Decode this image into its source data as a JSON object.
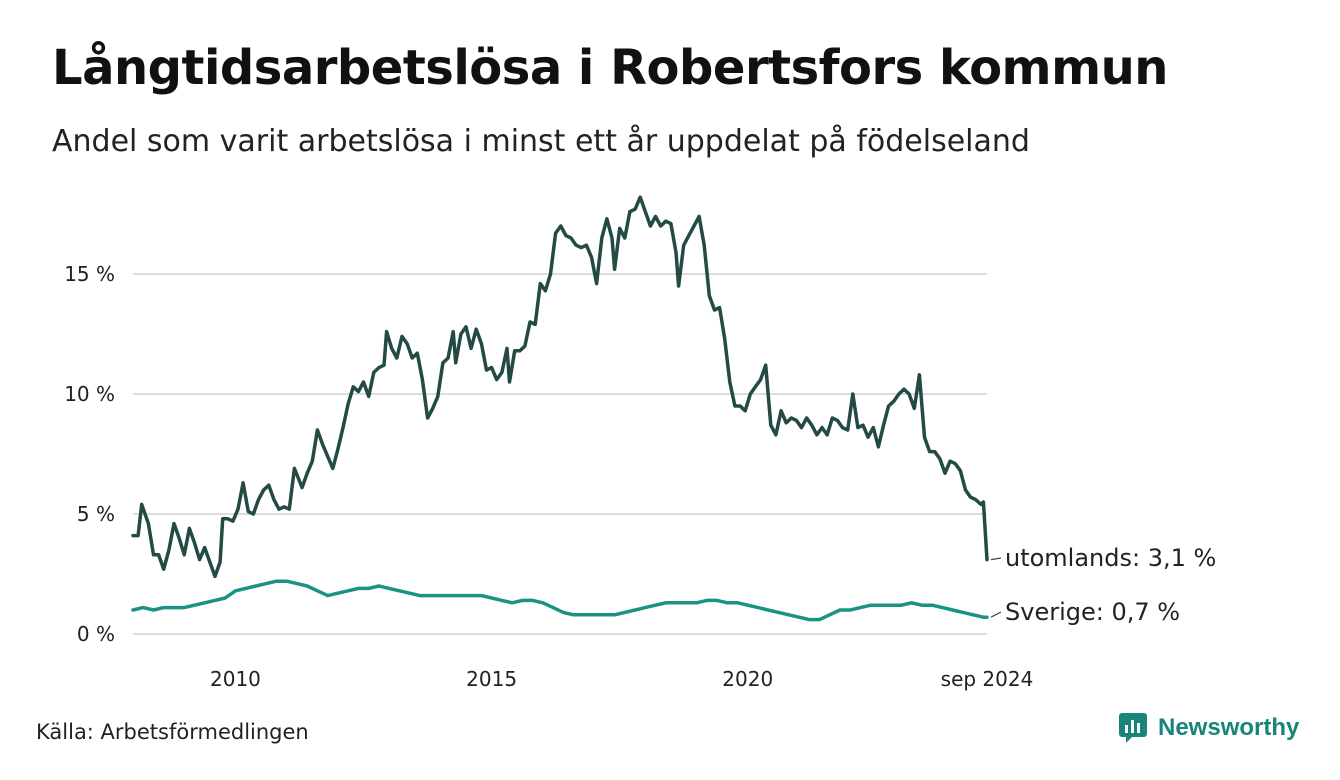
{
  "title": "Långtidsarbetslösa i Robertsfors kommun",
  "subtitle": "Andel som varit arbetslösa i minst ett år uppdelat på födelseland",
  "source": "Källa: Arbetsförmedlingen",
  "brand": {
    "name": "Newsworthy",
    "icon": "newsworthy-logo-icon",
    "color": "#17857a"
  },
  "chart_data": {
    "type": "line",
    "xlim": [
      2008.0,
      2024.67
    ],
    "ylim": [
      0,
      18.5
    ],
    "grid": true,
    "x_ticks": [
      {
        "value": 2010,
        "label": "2010"
      },
      {
        "value": 2015,
        "label": "2015"
      },
      {
        "value": 2020,
        "label": "2020"
      },
      {
        "value": 2024.67,
        "label": "sep 2024"
      }
    ],
    "y_ticks": [
      {
        "value": 0,
        "label": "0 %"
      },
      {
        "value": 5,
        "label": "5 %"
      },
      {
        "value": 10,
        "label": "10 %"
      },
      {
        "value": 15,
        "label": "15 %"
      }
    ],
    "series": [
      {
        "name": "utomlands",
        "end_label": "utomlands: 3,1 %",
        "color": "#234a44",
        "points": [
          [
            2008.0,
            4.1
          ],
          [
            2008.1,
            4.1
          ],
          [
            2008.17,
            5.4
          ],
          [
            2008.3,
            4.6
          ],
          [
            2008.4,
            3.3
          ],
          [
            2008.5,
            3.3
          ],
          [
            2008.6,
            2.7
          ],
          [
            2008.7,
            3.5
          ],
          [
            2008.8,
            4.6
          ],
          [
            2008.9,
            4.0
          ],
          [
            2009.0,
            3.3
          ],
          [
            2009.1,
            4.4
          ],
          [
            2009.2,
            3.8
          ],
          [
            2009.3,
            3.1
          ],
          [
            2009.4,
            3.6
          ],
          [
            2009.5,
            3.0
          ],
          [
            2009.6,
            2.4
          ],
          [
            2009.7,
            3.0
          ],
          [
            2009.75,
            4.8
          ],
          [
            2009.85,
            4.8
          ],
          [
            2009.95,
            4.7
          ],
          [
            2010.05,
            5.2
          ],
          [
            2010.15,
            6.3
          ],
          [
            2010.25,
            5.1
          ],
          [
            2010.35,
            5.0
          ],
          [
            2010.45,
            5.6
          ],
          [
            2010.55,
            6.0
          ],
          [
            2010.65,
            6.2
          ],
          [
            2010.75,
            5.6
          ],
          [
            2010.85,
            5.2
          ],
          [
            2010.95,
            5.3
          ],
          [
            2011.05,
            5.2
          ],
          [
            2011.15,
            6.9
          ],
          [
            2011.3,
            6.1
          ],
          [
            2011.4,
            6.7
          ],
          [
            2011.5,
            7.2
          ],
          [
            2011.6,
            8.5
          ],
          [
            2011.7,
            7.9
          ],
          [
            2011.8,
            7.4
          ],
          [
            2011.9,
            6.9
          ],
          [
            2012.0,
            7.7
          ],
          [
            2012.1,
            8.6
          ],
          [
            2012.2,
            9.6
          ],
          [
            2012.3,
            10.3
          ],
          [
            2012.4,
            10.1
          ],
          [
            2012.5,
            10.5
          ],
          [
            2012.6,
            9.9
          ],
          [
            2012.7,
            10.9
          ],
          [
            2012.8,
            11.1
          ],
          [
            2012.9,
            11.2
          ],
          [
            2012.95,
            12.6
          ],
          [
            2013.05,
            11.9
          ],
          [
            2013.15,
            11.5
          ],
          [
            2013.25,
            12.4
          ],
          [
            2013.35,
            12.1
          ],
          [
            2013.45,
            11.5
          ],
          [
            2013.55,
            11.7
          ],
          [
            2013.65,
            10.6
          ],
          [
            2013.75,
            9.0
          ],
          [
            2013.85,
            9.4
          ],
          [
            2013.95,
            9.9
          ],
          [
            2014.05,
            11.3
          ],
          [
            2014.15,
            11.5
          ],
          [
            2014.25,
            12.6
          ],
          [
            2014.3,
            11.3
          ],
          [
            2014.4,
            12.5
          ],
          [
            2014.5,
            12.8
          ],
          [
            2014.6,
            11.9
          ],
          [
            2014.7,
            12.7
          ],
          [
            2014.8,
            12.1
          ],
          [
            2014.9,
            11.0
          ],
          [
            2015.0,
            11.1
          ],
          [
            2015.1,
            10.6
          ],
          [
            2015.2,
            10.9
          ],
          [
            2015.3,
            11.9
          ],
          [
            2015.35,
            10.5
          ],
          [
            2015.45,
            11.8
          ],
          [
            2015.55,
            11.8
          ],
          [
            2015.65,
            12.0
          ],
          [
            2015.75,
            13.0
          ],
          [
            2015.85,
            12.9
          ],
          [
            2015.95,
            14.6
          ],
          [
            2016.05,
            14.3
          ],
          [
            2016.15,
            15.0
          ],
          [
            2016.25,
            16.7
          ],
          [
            2016.35,
            17.0
          ],
          [
            2016.45,
            16.6
          ],
          [
            2016.55,
            16.5
          ],
          [
            2016.65,
            16.2
          ],
          [
            2016.75,
            16.1
          ],
          [
            2016.85,
            16.2
          ],
          [
            2016.95,
            15.7
          ],
          [
            2017.05,
            14.6
          ],
          [
            2017.15,
            16.5
          ],
          [
            2017.25,
            17.3
          ],
          [
            2017.35,
            16.5
          ],
          [
            2017.4,
            15.2
          ],
          [
            2017.5,
            16.9
          ],
          [
            2017.6,
            16.5
          ],
          [
            2017.7,
            17.6
          ],
          [
            2017.8,
            17.7
          ],
          [
            2017.9,
            18.2
          ],
          [
            2018.0,
            17.6
          ],
          [
            2018.1,
            17.0
          ],
          [
            2018.2,
            17.4
          ],
          [
            2018.3,
            17.0
          ],
          [
            2018.4,
            17.2
          ],
          [
            2018.5,
            17.1
          ],
          [
            2018.6,
            15.9
          ],
          [
            2018.65,
            14.5
          ],
          [
            2018.75,
            16.2
          ],
          [
            2018.85,
            16.6
          ],
          [
            2018.95,
            17.0
          ],
          [
            2019.05,
            17.4
          ],
          [
            2019.15,
            16.2
          ],
          [
            2019.25,
            14.1
          ],
          [
            2019.35,
            13.5
          ],
          [
            2019.45,
            13.6
          ],
          [
            2019.55,
            12.3
          ],
          [
            2019.65,
            10.5
          ],
          [
            2019.75,
            9.5
          ],
          [
            2019.85,
            9.5
          ],
          [
            2019.95,
            9.3
          ],
          [
            2020.05,
            10.0
          ],
          [
            2020.15,
            10.3
          ],
          [
            2020.25,
            10.6
          ],
          [
            2020.35,
            11.2
          ],
          [
            2020.45,
            8.7
          ],
          [
            2020.55,
            8.3
          ],
          [
            2020.65,
            9.3
          ],
          [
            2020.75,
            8.8
          ],
          [
            2020.85,
            9.0
          ],
          [
            2020.95,
            8.9
          ],
          [
            2021.05,
            8.6
          ],
          [
            2021.15,
            9.0
          ],
          [
            2021.25,
            8.7
          ],
          [
            2021.35,
            8.3
          ],
          [
            2021.45,
            8.6
          ],
          [
            2021.55,
            8.3
          ],
          [
            2021.65,
            9.0
          ],
          [
            2021.75,
            8.9
          ],
          [
            2021.85,
            8.6
          ],
          [
            2021.95,
            8.5
          ],
          [
            2022.05,
            10.0
          ],
          [
            2022.15,
            8.6
          ],
          [
            2022.25,
            8.7
          ],
          [
            2022.35,
            8.2
          ],
          [
            2022.45,
            8.6
          ],
          [
            2022.55,
            7.8
          ],
          [
            2022.65,
            8.7
          ],
          [
            2022.75,
            9.5
          ],
          [
            2022.85,
            9.7
          ],
          [
            2022.95,
            10.0
          ],
          [
            2023.05,
            10.2
          ],
          [
            2023.15,
            10.0
          ],
          [
            2023.25,
            9.4
          ],
          [
            2023.35,
            10.8
          ],
          [
            2023.45,
            8.2
          ],
          [
            2023.55,
            7.6
          ],
          [
            2023.65,
            7.6
          ],
          [
            2023.75,
            7.3
          ],
          [
            2023.85,
            6.7
          ],
          [
            2023.95,
            7.2
          ],
          [
            2024.05,
            7.1
          ],
          [
            2024.15,
            6.8
          ],
          [
            2024.25,
            6.0
          ],
          [
            2024.35,
            5.7
          ],
          [
            2024.45,
            5.6
          ],
          [
            2024.55,
            5.4
          ],
          [
            2024.6,
            5.5
          ],
          [
            2024.67,
            3.1
          ]
        ]
      },
      {
        "name": "Sverige",
        "end_label": "Sverige: 0,7 %",
        "color": "#1a9385",
        "points": [
          [
            2008.0,
            1.0
          ],
          [
            2008.2,
            1.1
          ],
          [
            2008.4,
            1.0
          ],
          [
            2008.6,
            1.1
          ],
          [
            2008.8,
            1.1
          ],
          [
            2009.0,
            1.1
          ],
          [
            2009.2,
            1.2
          ],
          [
            2009.4,
            1.3
          ],
          [
            2009.6,
            1.4
          ],
          [
            2009.8,
            1.5
          ],
          [
            2010.0,
            1.8
          ],
          [
            2010.2,
            1.9
          ],
          [
            2010.4,
            2.0
          ],
          [
            2010.6,
            2.1
          ],
          [
            2010.8,
            2.2
          ],
          [
            2011.0,
            2.2
          ],
          [
            2011.2,
            2.1
          ],
          [
            2011.4,
            2.0
          ],
          [
            2011.6,
            1.8
          ],
          [
            2011.8,
            1.6
          ],
          [
            2012.0,
            1.7
          ],
          [
            2012.2,
            1.8
          ],
          [
            2012.4,
            1.9
          ],
          [
            2012.6,
            1.9
          ],
          [
            2012.8,
            2.0
          ],
          [
            2013.0,
            1.9
          ],
          [
            2013.2,
            1.8
          ],
          [
            2013.4,
            1.7
          ],
          [
            2013.6,
            1.6
          ],
          [
            2013.8,
            1.6
          ],
          [
            2014.0,
            1.6
          ],
          [
            2014.2,
            1.6
          ],
          [
            2014.4,
            1.6
          ],
          [
            2014.6,
            1.6
          ],
          [
            2014.8,
            1.6
          ],
          [
            2015.0,
            1.5
          ],
          [
            2015.2,
            1.4
          ],
          [
            2015.4,
            1.3
          ],
          [
            2015.6,
            1.4
          ],
          [
            2015.8,
            1.4
          ],
          [
            2016.0,
            1.3
          ],
          [
            2016.2,
            1.1
          ],
          [
            2016.4,
            0.9
          ],
          [
            2016.6,
            0.8
          ],
          [
            2016.8,
            0.8
          ],
          [
            2017.0,
            0.8
          ],
          [
            2017.2,
            0.8
          ],
          [
            2017.4,
            0.8
          ],
          [
            2017.6,
            0.9
          ],
          [
            2017.8,
            1.0
          ],
          [
            2018.0,
            1.1
          ],
          [
            2018.2,
            1.2
          ],
          [
            2018.4,
            1.3
          ],
          [
            2018.6,
            1.3
          ],
          [
            2018.8,
            1.3
          ],
          [
            2019.0,
            1.3
          ],
          [
            2019.2,
            1.4
          ],
          [
            2019.4,
            1.4
          ],
          [
            2019.6,
            1.3
          ],
          [
            2019.8,
            1.3
          ],
          [
            2020.0,
            1.2
          ],
          [
            2020.2,
            1.1
          ],
          [
            2020.4,
            1.0
          ],
          [
            2020.6,
            0.9
          ],
          [
            2020.8,
            0.8
          ],
          [
            2021.0,
            0.7
          ],
          [
            2021.2,
            0.6
          ],
          [
            2021.4,
            0.6
          ],
          [
            2021.6,
            0.8
          ],
          [
            2021.8,
            1.0
          ],
          [
            2022.0,
            1.0
          ],
          [
            2022.2,
            1.1
          ],
          [
            2022.4,
            1.2
          ],
          [
            2022.6,
            1.2
          ],
          [
            2022.8,
            1.2
          ],
          [
            2023.0,
            1.2
          ],
          [
            2023.2,
            1.3
          ],
          [
            2023.4,
            1.2
          ],
          [
            2023.6,
            1.2
          ],
          [
            2023.8,
            1.1
          ],
          [
            2024.0,
            1.0
          ],
          [
            2024.2,
            0.9
          ],
          [
            2024.4,
            0.8
          ],
          [
            2024.6,
            0.7
          ],
          [
            2024.67,
            0.7
          ]
        ]
      }
    ]
  }
}
